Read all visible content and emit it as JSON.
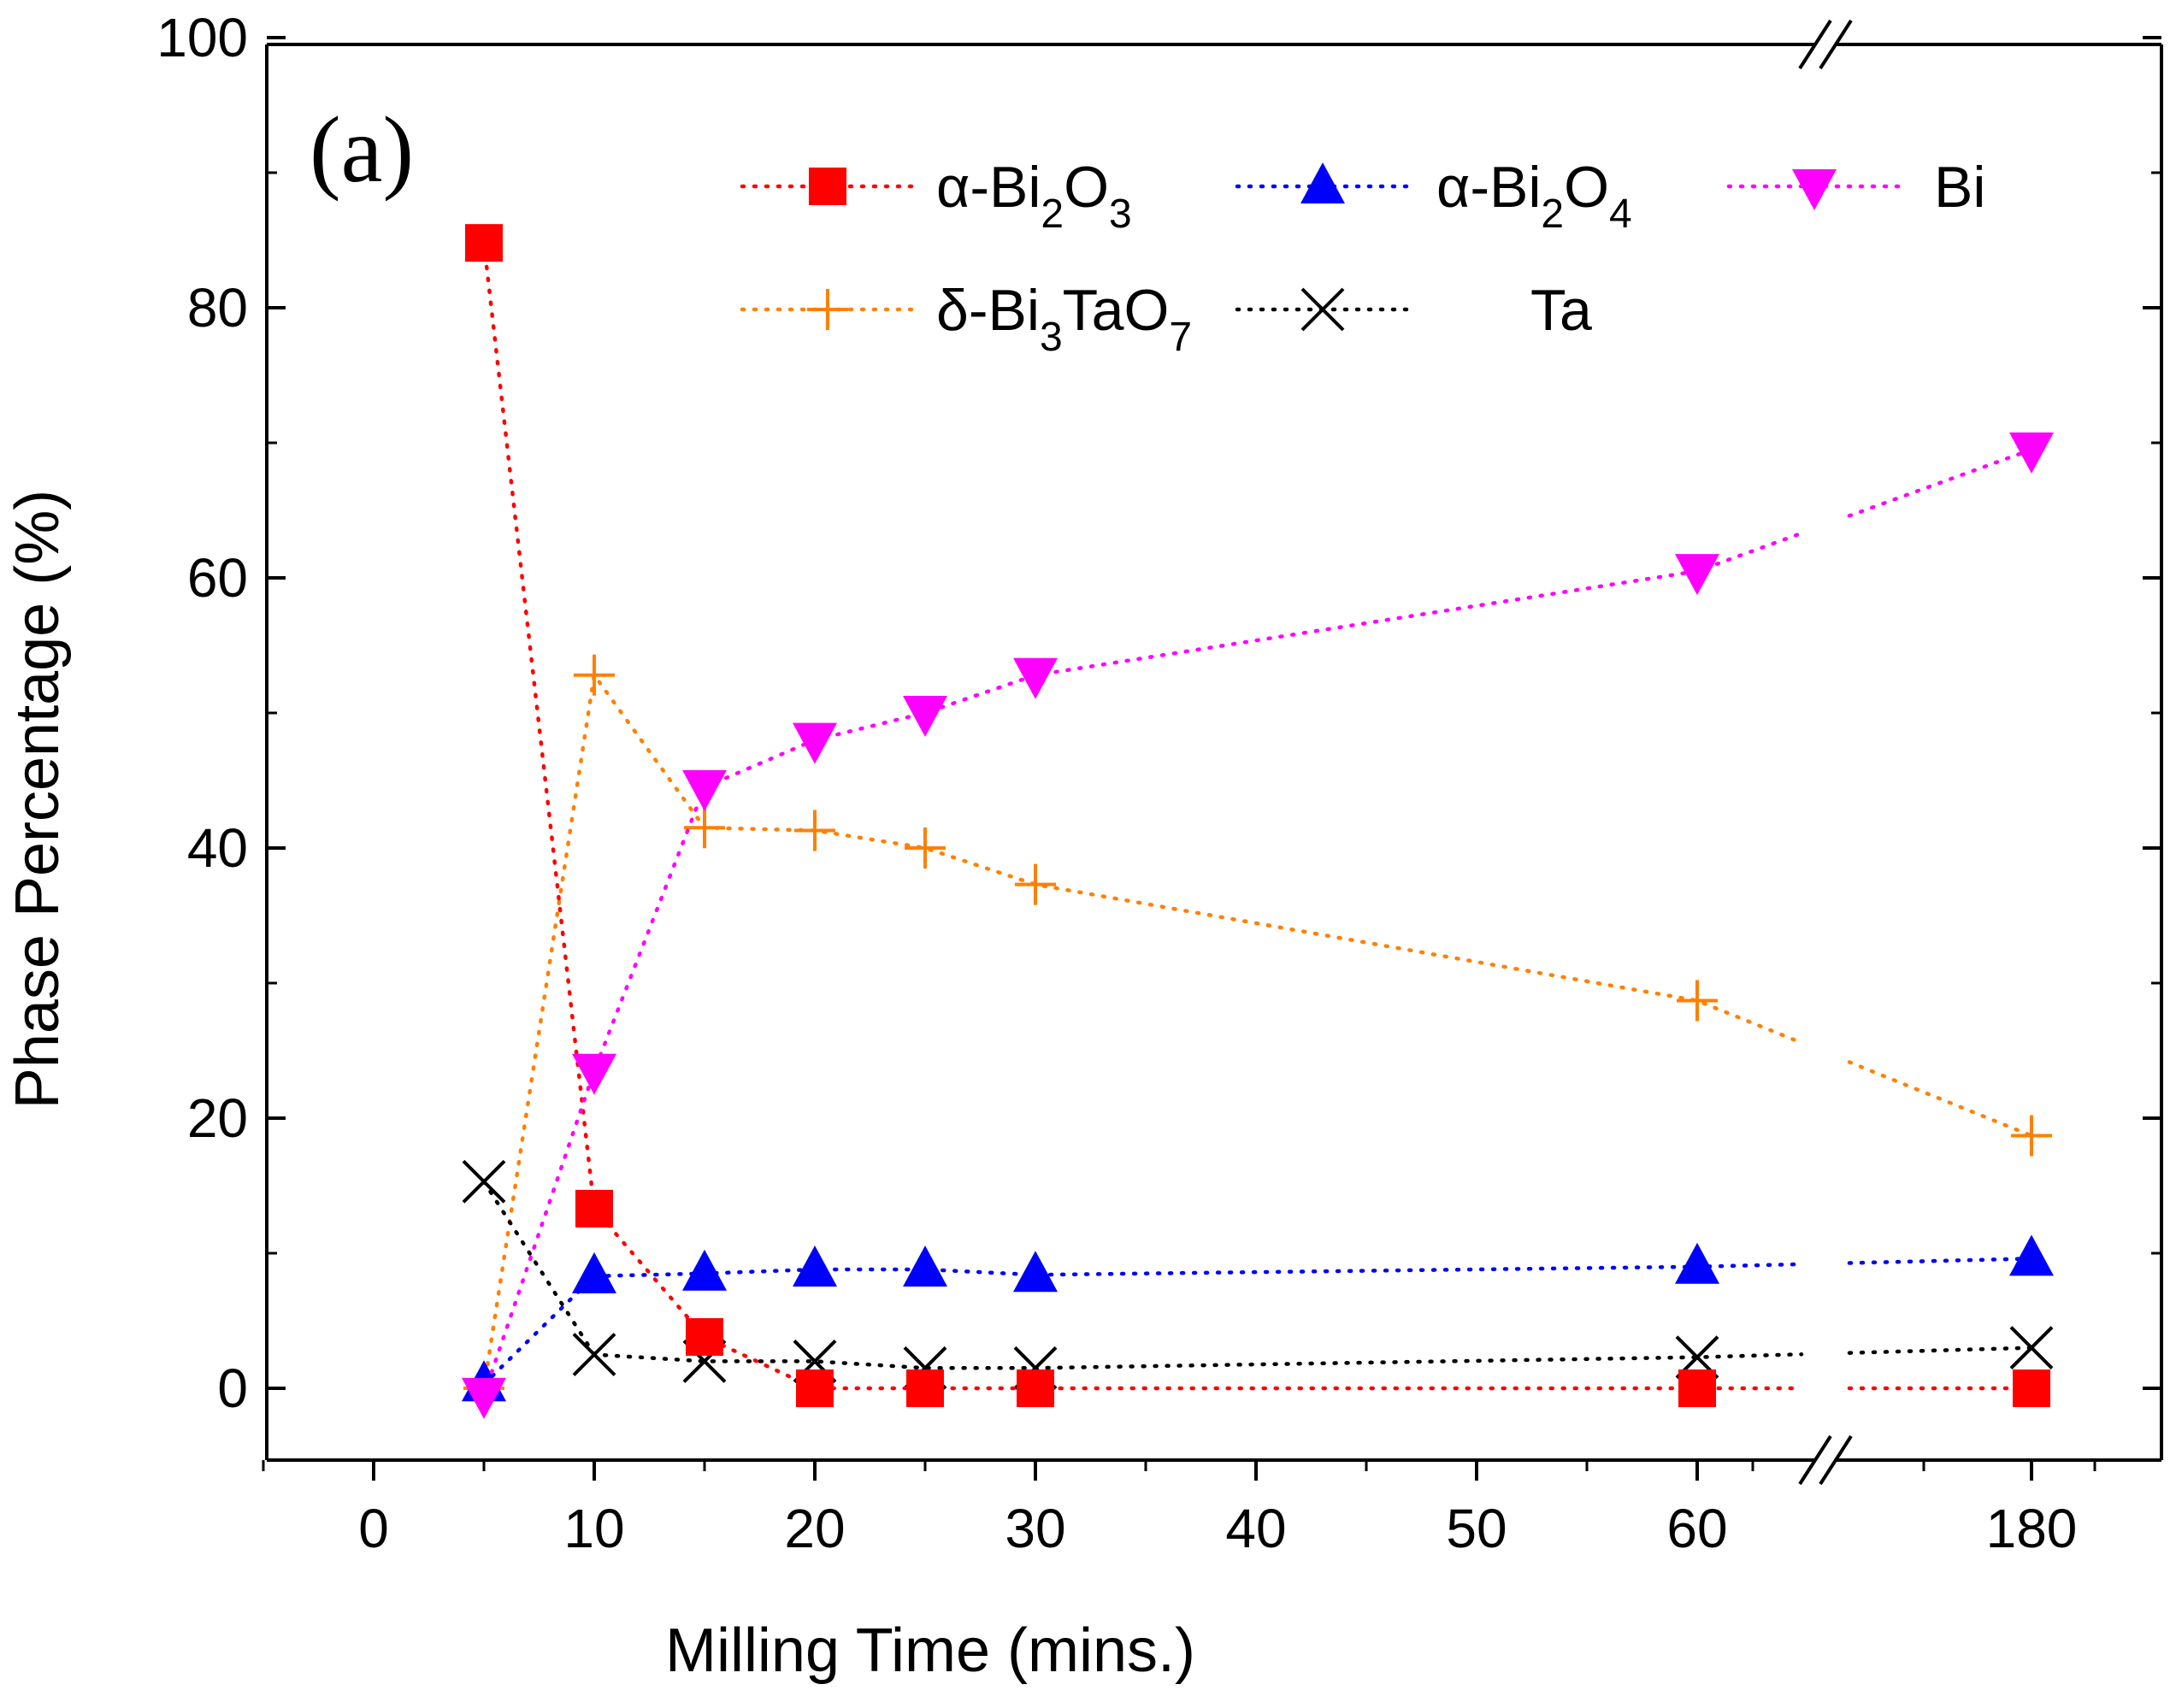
{
  "chart_data": {
    "type": "line",
    "panel_label": "(a)",
    "xlabel": "Milling Time (mins.)",
    "ylabel": "Phase Percentage (%)",
    "ylim": [
      -5,
      100
    ],
    "yticks": [
      0,
      20,
      40,
      60,
      80,
      100
    ],
    "xticks": [
      {
        "value": 0,
        "label": "0"
      },
      {
        "value": 10,
        "label": "10"
      },
      {
        "value": 20,
        "label": "20"
      },
      {
        "value": 30,
        "label": "30"
      },
      {
        "value": 40,
        "label": "40"
      },
      {
        "value": 50,
        "label": "50"
      },
      {
        "value": 60,
        "label": "60"
      },
      {
        "value": 180,
        "label": "180"
      }
    ],
    "x_axis_break": "between 60 and 180",
    "x": [
      5,
      10,
      15,
      20,
      25,
      30,
      60,
      180
    ],
    "series": [
      {
        "name": "α-Bi2O3",
        "label_main": "α-Bi",
        "sub1": "2",
        "mid": "O",
        "sub2": "3",
        "color": "#ff0000",
        "marker": "square",
        "values": [
          84.8,
          13.3,
          3.8,
          0,
          0,
          0,
          0,
          0
        ]
      },
      {
        "name": "α-Bi2O4",
        "label_main": "α-Bi",
        "sub1": "2",
        "mid": "O",
        "sub2": "4",
        "color": "#0000ff",
        "marker": "triangle-up",
        "values": [
          0.3,
          8.3,
          8.5,
          8.8,
          8.8,
          8.4,
          9.0,
          9.6
        ]
      },
      {
        "name": "Bi",
        "label_main": "Bi",
        "sub1": "",
        "mid": "",
        "sub2": "",
        "color": "#ff00ff",
        "marker": "triangle-down",
        "values": [
          -0.5,
          23.5,
          44.5,
          48.0,
          50.0,
          52.8,
          60.5,
          69.5
        ]
      },
      {
        "name": "δ-Bi3TaO7",
        "label_main": "δ-Bi",
        "sub1": "3",
        "mid": "TaO",
        "sub2": "7",
        "color": "#ff8000",
        "marker": "plus",
        "values": [
          0,
          52.8,
          41.5,
          41.3,
          40.0,
          37.3,
          28.7,
          18.7
        ]
      },
      {
        "name": "Ta",
        "label_main": "Ta",
        "sub1": "",
        "mid": "",
        "sub2": "",
        "color": "#000000",
        "marker": "cross",
        "values": [
          15.3,
          2.5,
          2.0,
          2.0,
          1.5,
          1.5,
          2.3,
          3.0
        ]
      }
    ],
    "legend_position": "top-right"
  }
}
